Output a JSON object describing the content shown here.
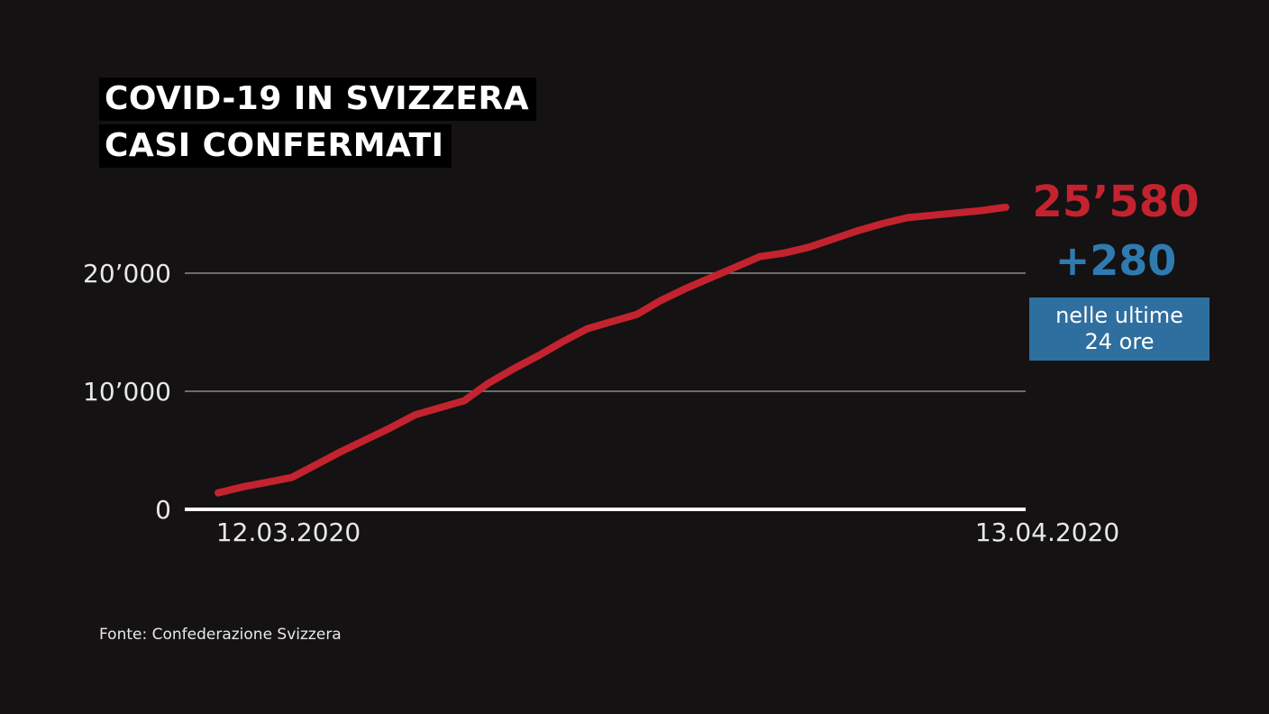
{
  "header": {
    "title_line1": "COVID-19 IN SVIZZERA",
    "title_line2": "CASI CONFERMATI"
  },
  "callout": {
    "last_value": "25’580",
    "delta": "+280",
    "delta_caption_line1": "nelle ultime",
    "delta_caption_line2": "24 ore"
  },
  "source": "Fonte: Confederazione Svizzera",
  "colors": {
    "background": "#141212",
    "series": "#c3232f",
    "delta": "#2f7bb0",
    "caption_box": "#2f6f9f"
  },
  "chart_data": {
    "type": "line",
    "title": "COVID-19 IN SVIZZERA CASI CONFERMATI",
    "xlabel": "",
    "ylabel": "",
    "x_tick_labels": [
      "12.03.2020",
      "13.04.2020"
    ],
    "y_ticks": [
      0,
      10000,
      20000
    ],
    "y_tick_labels": [
      "0",
      "10’000",
      "20’000"
    ],
    "ylim": [
      0,
      25580
    ],
    "grid": true,
    "series": [
      {
        "x": [
          "12.03.2020",
          "13.03.2020",
          "14.03.2020",
          "15.03.2020",
          "16.03.2020",
          "17.03.2020",
          "18.03.2020",
          "19.03.2020",
          "20.03.2020",
          "21.03.2020",
          "22.03.2020",
          "23.03.2020",
          "24.03.2020",
          "25.03.2020",
          "26.03.2020",
          "27.03.2020",
          "28.03.2020",
          "29.03.2020",
          "30.03.2020",
          "31.03.2020",
          "01.04.2020",
          "02.04.2020",
          "03.04.2020",
          "04.04.2020",
          "05.04.2020",
          "06.04.2020",
          "07.04.2020",
          "08.04.2020",
          "09.04.2020",
          "10.04.2020",
          "11.04.2020",
          "12.04.2020",
          "13.04.2020"
        ],
        "values": [
          1400,
          1900,
          2300,
          2700,
          3800,
          4900,
          5900,
          6900,
          8000,
          8600,
          9200,
          10700,
          11900,
          13000,
          14200,
          15300,
          15900,
          16500,
          17700,
          18700,
          19600,
          20500,
          21400,
          21700,
          22200,
          22900,
          23600,
          24200,
          24700,
          24900,
          25100,
          25300,
          25580
        ]
      }
    ]
  }
}
